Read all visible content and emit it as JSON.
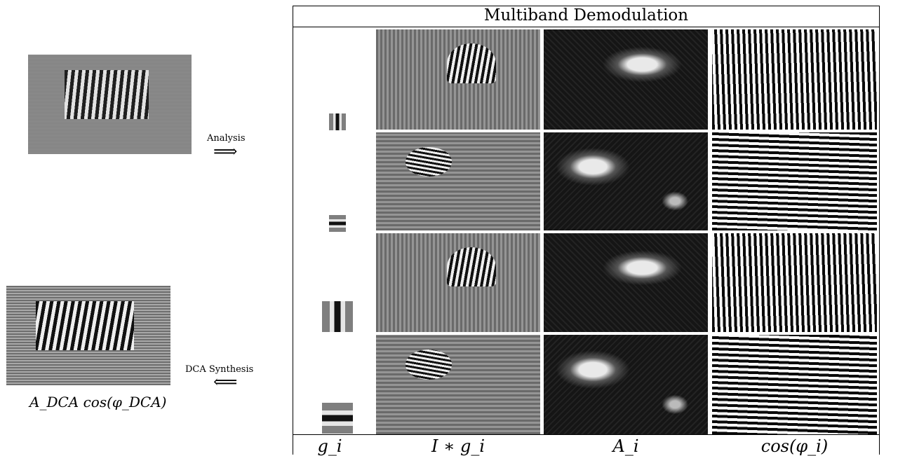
{
  "left": {
    "analysis_label": "Analysis",
    "analysis_arrow": "⟹",
    "synthesis_label": "DCA Synthesis",
    "synthesis_arrow": "⟸",
    "synthesis_caption": "A_DCA cos(φ_DCA)"
  },
  "table": {
    "title": "Multiband Demodulation",
    "columns": [
      "g_i",
      "I ∗ g_i",
      "A_i",
      "cos(φ_i)"
    ]
  }
}
